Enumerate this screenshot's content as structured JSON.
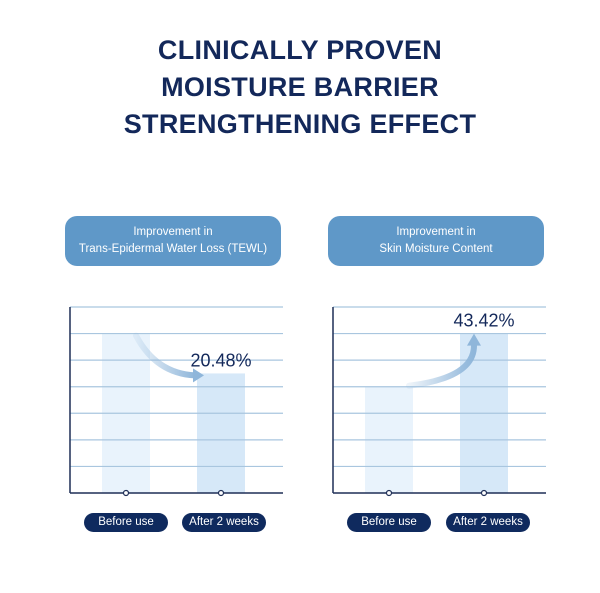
{
  "title": {
    "lines": [
      "CLINICALLY PROVEN",
      "MOISTURE BARRIER",
      "STRENGTHENING EFFECT"
    ]
  },
  "colors": {
    "title": "#13285a",
    "badge": "#5f98c8",
    "pill": "#0f2a5e",
    "bar_before": "#e9f3fc",
    "bar_after": "#d6e8f8",
    "gridline": "#a9c6df",
    "axis": "#1f2f57",
    "arrow": "#8fb6da"
  },
  "chart_data": [
    {
      "type": "bar",
      "title_lines": [
        "Improvement in",
        "Trans-Epidermal Water Loss (TEWL)"
      ],
      "categories": [
        "Before use",
        "After 2 weeks"
      ],
      "values": [
        6,
        4.5
      ],
      "value_label": "20.48%",
      "annotated_category": "After 2 weeks",
      "trend": "decrease",
      "ylim": [
        0,
        7
      ],
      "gridlines": 7,
      "grid": true,
      "xlabel": "",
      "ylabel": ""
    },
    {
      "type": "bar",
      "title_lines": [
        "Improvement in",
        "Skin Moisture Content"
      ],
      "categories": [
        "Before use",
        "After 2 weeks"
      ],
      "values": [
        4,
        6
      ],
      "value_label": "43.42%",
      "annotated_category": "After 2 weeks",
      "trend": "increase",
      "ylim": [
        0,
        7
      ],
      "gridlines": 7,
      "grid": true,
      "xlabel": "",
      "ylabel": ""
    }
  ]
}
